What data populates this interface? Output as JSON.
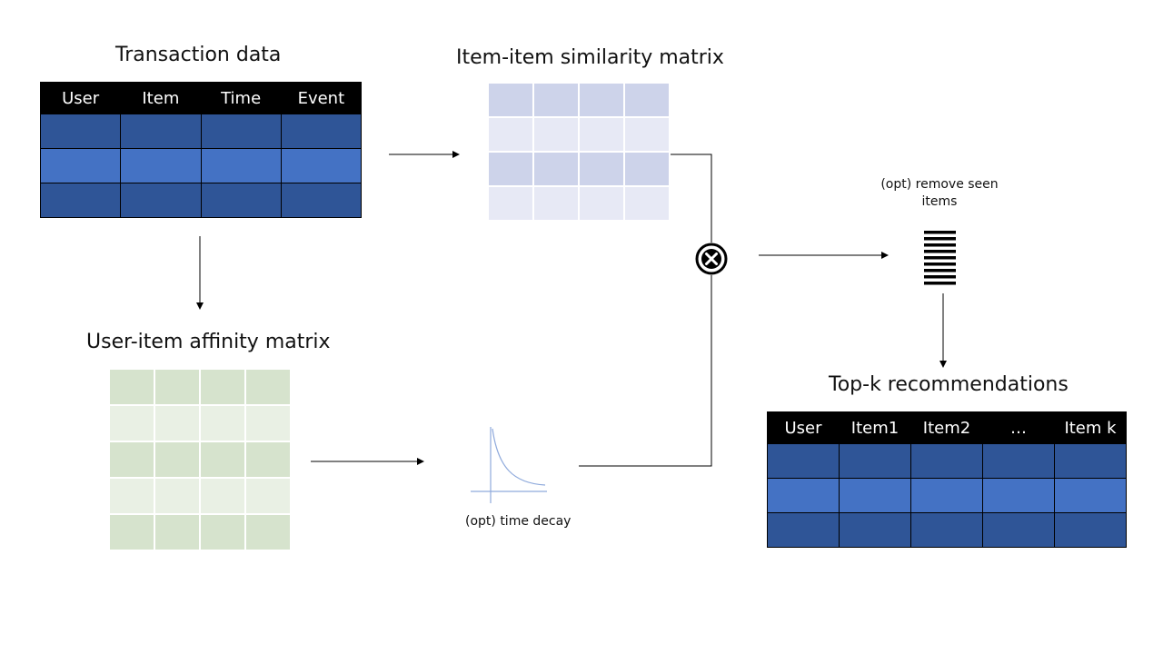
{
  "transaction": {
    "title": "Transaction data",
    "headers": [
      "User",
      "Item",
      "Time",
      "Event"
    ],
    "row_count": 3
  },
  "similarity": {
    "title": "Item-item similarity matrix"
  },
  "affinity": {
    "title": "User-item affinity matrix"
  },
  "time_decay": {
    "caption": "(opt) time decay"
  },
  "remove_seen": {
    "caption_line1": "(opt) remove seen",
    "caption_line2": "items"
  },
  "recommendations": {
    "title": "Top-k recommendations",
    "headers": [
      "User",
      "Item1",
      "Item2",
      "…",
      "Item k"
    ],
    "row_count": 3
  },
  "icons": {
    "multiply": "circled-x-icon",
    "sorted_list": "ranked-list-icon",
    "decay_curve": "decay-curve-icon"
  },
  "colors": {
    "table_header": "#000000",
    "table_row_dark": "#2f5597",
    "table_row_light": "#4472c4",
    "similarity_cell": "#cdd3ea",
    "affinity_cell": "#d6e3cd",
    "decay_curve": "#8faadc"
  }
}
